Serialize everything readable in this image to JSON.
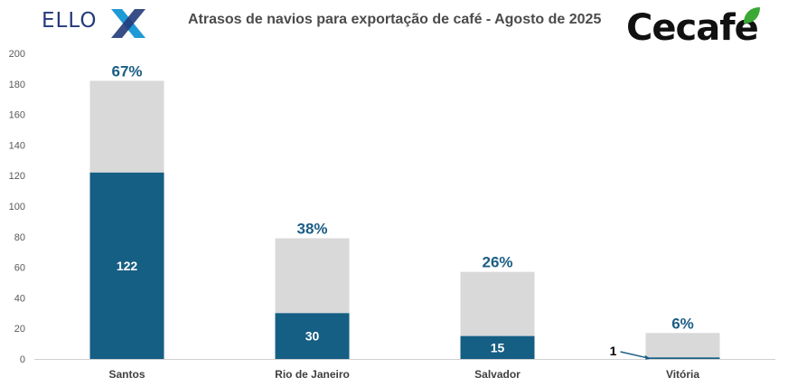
{
  "brand": {
    "left_logo": "ELLO",
    "right_logo": "Cecafe",
    "right_logo_leaf_color": "#3aa935",
    "left_logo_accent": "#1e9ad6"
  },
  "colors": {
    "delayed_bar": "#155e84",
    "total_bar": "#d9d9d9",
    "pct_label": "#1b5e85",
    "axis_text": "#595959"
  },
  "chart_data": {
    "type": "bar",
    "title": "Atrasos de navios para exportação de café - Agosto de 2025",
    "xlabel": "",
    "ylabel": "",
    "ylim": [
      0,
      200
    ],
    "yticks": [
      0,
      20,
      40,
      60,
      80,
      100,
      120,
      140,
      160,
      180,
      200
    ],
    "grid": false,
    "legend": "none",
    "stacked": true,
    "categories": [
      "Santos",
      "Rio de Janeiro",
      "Salvador",
      "Vitória"
    ],
    "series": [
      {
        "values": [
          122,
          30,
          15,
          1
        ],
        "color": "#155e84"
      },
      {
        "values": [
          60,
          49,
          42,
          16
        ],
        "color": "#d9d9d9"
      }
    ],
    "totals": [
      182,
      79,
      57,
      17
    ],
    "data_labels": [
      "122",
      "30",
      "15",
      "1"
    ],
    "percent_labels": [
      "67%",
      "38%",
      "26%",
      "6%"
    ]
  }
}
